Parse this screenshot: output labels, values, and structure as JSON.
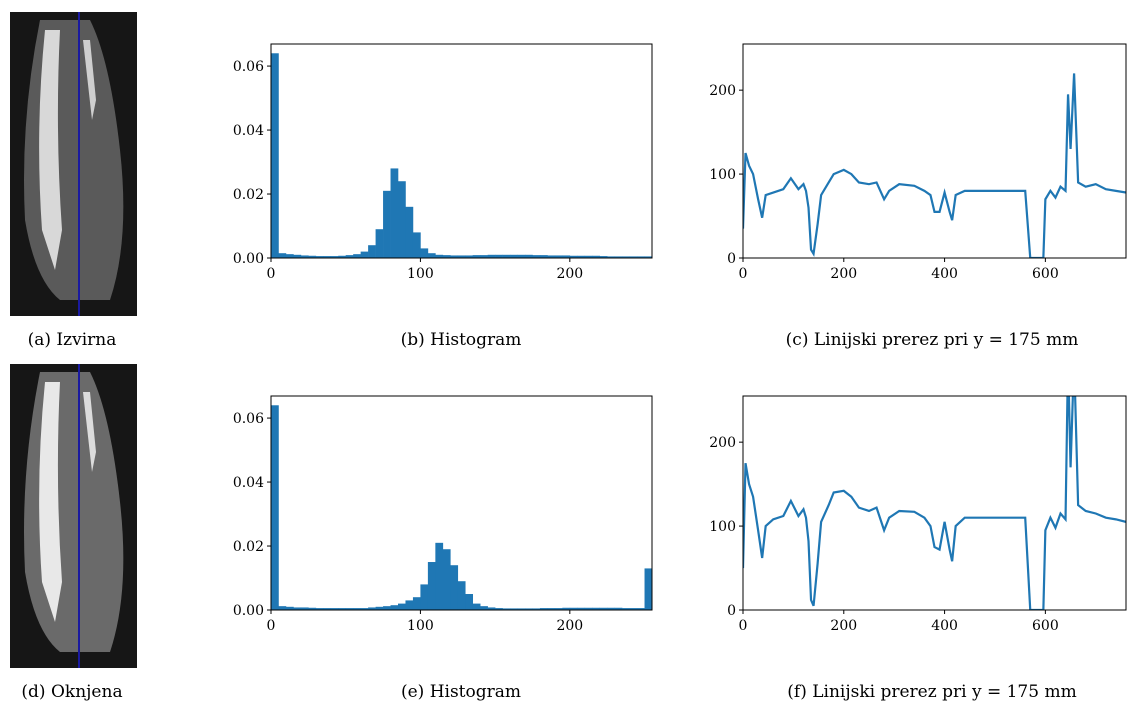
{
  "chart_data": [
    {
      "type": "image",
      "caption": "(a) Izvirna"
    },
    {
      "type": "histogram",
      "caption": "(b) Histogram",
      "color": "#1f77b4",
      "bins": [
        0,
        5,
        10,
        15,
        20,
        25,
        30,
        35,
        40,
        45,
        50,
        55,
        60,
        65,
        70,
        75,
        80,
        85,
        90,
        95,
        100,
        105,
        110,
        115,
        120,
        125,
        130,
        135,
        140,
        145,
        150,
        155,
        160,
        165,
        170,
        175,
        180,
        185,
        190,
        195,
        200,
        205,
        210,
        215,
        220,
        225,
        230,
        235,
        240,
        245,
        250,
        255
      ],
      "values": [
        0.064,
        0.0015,
        0.0012,
        0.001,
        0.0008,
        0.0007,
        0.0006,
        0.0006,
        0.0006,
        0.0007,
        0.0009,
        0.0012,
        0.002,
        0.004,
        0.009,
        0.021,
        0.028,
        0.024,
        0.016,
        0.008,
        0.003,
        0.0015,
        0.001,
        0.0009,
        0.0008,
        0.0008,
        0.0008,
        0.0009,
        0.0009,
        0.001,
        0.001,
        0.001,
        0.001,
        0.001,
        0.001,
        0.0009,
        0.0009,
        0.0008,
        0.0008,
        0.0008,
        0.0007,
        0.0007,
        0.0007,
        0.0007,
        0.0006,
        0.0005,
        0.0005,
        0.0005,
        0.0005,
        0.0005,
        0.0005
      ],
      "xlim": [
        0,
        255
      ],
      "xticks": [
        0,
        100,
        200
      ],
      "ylim": [
        0,
        0.0669
      ],
      "yticks": [
        {
          "value": 0,
          "label": "0.00"
        },
        0.02,
        0.04,
        0.06
      ]
    },
    {
      "type": "line",
      "caption": "(c) Linijski prerez pri y = 175 mm",
      "x": [
        0,
        5,
        12,
        20,
        30,
        38,
        45,
        60,
        80,
        95,
        110,
        120,
        125,
        130,
        135,
        140,
        148,
        155,
        170,
        180,
        200,
        215,
        230,
        250,
        265,
        280,
        290,
        310,
        340,
        360,
        372,
        380,
        390,
        400,
        410,
        415,
        422,
        440,
        480,
        520,
        560,
        565,
        570,
        596,
        600,
        610,
        620,
        630,
        640,
        645,
        650,
        657,
        665,
        680,
        700,
        720,
        740,
        760
      ],
      "series": [
        {
          "color": "#1f77b4",
          "values": [
            35,
            125,
            110,
            100,
            70,
            48,
            75,
            78,
            82,
            95,
            82,
            88,
            80,
            60,
            10,
            5,
            40,
            75,
            90,
            100,
            105,
            100,
            90,
            88,
            90,
            70,
            80,
            88,
            86,
            80,
            75,
            55,
            55,
            78,
            55,
            45,
            75,
            80,
            80,
            80,
            80,
            40,
            0,
            0,
            70,
            80,
            72,
            85,
            80,
            195,
            130,
            220,
            90,
            85,
            88,
            82,
            80,
            78
          ]
        }
      ],
      "xlim": [
        0,
        760
      ],
      "xticks": [
        0,
        200,
        400,
        600
      ],
      "ylim": [
        0,
        255
      ],
      "yticks": [
        0,
        100,
        200
      ]
    },
    {
      "type": "image",
      "caption": "(d) Oknjena"
    },
    {
      "type": "histogram",
      "caption": "(e) Histogram",
      "color": "#1f77b4",
      "bins": [
        0,
        5,
        10,
        15,
        20,
        25,
        30,
        35,
        40,
        45,
        50,
        55,
        60,
        65,
        70,
        75,
        80,
        85,
        90,
        95,
        100,
        105,
        110,
        115,
        120,
        125,
        130,
        135,
        140,
        145,
        150,
        155,
        160,
        165,
        170,
        175,
        180,
        185,
        190,
        195,
        200,
        205,
        210,
        215,
        220,
        225,
        230,
        235,
        240,
        245,
        250,
        255
      ],
      "values": [
        0.064,
        0.0012,
        0.001,
        0.0008,
        0.0008,
        0.0007,
        0.0006,
        0.0006,
        0.0006,
        0.0006,
        0.0006,
        0.0006,
        0.0006,
        0.0008,
        0.001,
        0.0012,
        0.0015,
        0.002,
        0.003,
        0.004,
        0.008,
        0.015,
        0.021,
        0.019,
        0.014,
        0.009,
        0.005,
        0.002,
        0.0012,
        0.0008,
        0.0006,
        0.0005,
        0.0005,
        0.0005,
        0.0005,
        0.0005,
        0.0006,
        0.0006,
        0.0006,
        0.0007,
        0.0007,
        0.0007,
        0.0007,
        0.0007,
        0.0007,
        0.0007,
        0.0007,
        0.0006,
        0.0006,
        0.0006,
        0.013
      ],
      "xlim": [
        0,
        255
      ],
      "xticks": [
        0,
        100,
        200
      ],
      "ylim": [
        0,
        0.0669
      ],
      "yticks": [
        {
          "value": 0,
          "label": "0.00"
        },
        0.02,
        0.04,
        0.06
      ]
    },
    {
      "type": "line",
      "caption": "(f) Linijski prerez pri y = 175 mm",
      "x": [
        0,
        5,
        12,
        20,
        30,
        38,
        45,
        60,
        80,
        95,
        110,
        120,
        125,
        130,
        135,
        140,
        148,
        155,
        170,
        180,
        200,
        215,
        230,
        250,
        265,
        280,
        290,
        310,
        340,
        360,
        372,
        380,
        390,
        400,
        410,
        415,
        422,
        440,
        480,
        520,
        560,
        565,
        570,
        596,
        600,
        610,
        620,
        630,
        640,
        645,
        650,
        657,
        665,
        680,
        700,
        720,
        740,
        760
      ],
      "series": [
        {
          "color": "#1f77b4",
          "values": [
            50,
            175,
            150,
            135,
            95,
            62,
            100,
            108,
            112,
            130,
            112,
            120,
            110,
            82,
            12,
            5,
            55,
            105,
            125,
            140,
            142,
            135,
            122,
            118,
            122,
            95,
            110,
            118,
            117,
            110,
            100,
            75,
            72,
            105,
            72,
            58,
            100,
            110,
            110,
            110,
            110,
            55,
            0,
            0,
            95,
            110,
            98,
            115,
            108,
            300,
            170,
            300,
            125,
            118,
            115,
            110,
            108,
            105
          ]
        }
      ],
      "xlim": [
        0,
        760
      ],
      "xticks": [
        0,
        200,
        400,
        600
      ],
      "ylim": [
        0,
        255
      ],
      "yticks": [
        0,
        100,
        200
      ]
    }
  ]
}
